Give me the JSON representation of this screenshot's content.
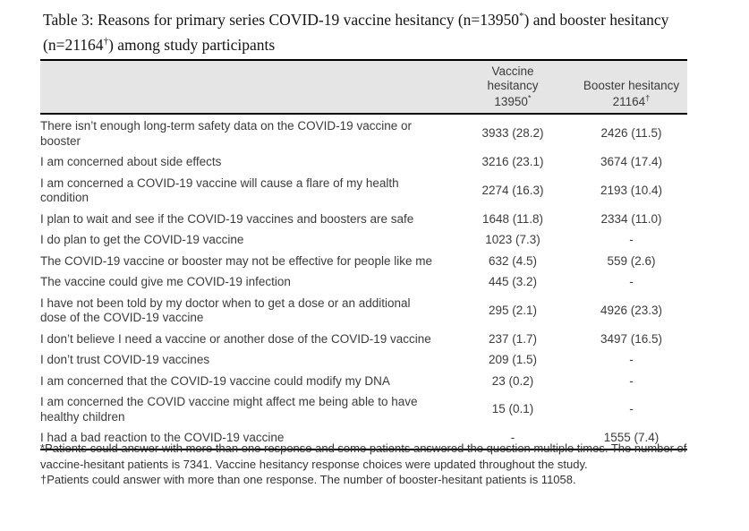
{
  "title": {
    "seg1": "Table 3: Reasons for primary series COVID-19 vaccine hesitancy (n=13950",
    "sup1": "*",
    "seg2": ") and booster hesitancy (n=21164",
    "sup2": "†",
    "seg3": ") among study participants"
  },
  "table": {
    "header": {
      "vaccine_label_line1": "Vaccine",
      "vaccine_label_line2": "hesitancy",
      "vaccine_n": "13950",
      "vaccine_sup": "*",
      "booster_label": "Booster hesitancy",
      "booster_n": "21164",
      "booster_sup": "†"
    },
    "rows": [
      {
        "reason": "There isn’t enough long-term safety data on the COVID-19 vaccine or booster",
        "vaccine": "3933 (28.2)",
        "booster": "2426 (11.5)"
      },
      {
        "reason": "I am concerned about side effects",
        "vaccine": "3216 (23.1)",
        "booster": "3674 (17.4)"
      },
      {
        "reason": "I am concerned a COVID-19 vaccine will cause a flare of my health condition",
        "vaccine": "2274 (16.3)",
        "booster": "2193 (10.4)"
      },
      {
        "reason": "I plan to wait and see if the COVID-19 vaccines and boosters are safe",
        "vaccine": "1648 (11.8)",
        "booster": "2334 (11.0)"
      },
      {
        "reason": "I do plan to get the COVID-19 vaccine",
        "vaccine": "1023 (7.3)",
        "booster": "-"
      },
      {
        "reason": "The COVID-19 vaccine or booster may not be effective for people like me",
        "vaccine": "632 (4.5)",
        "booster": "559 (2.6)"
      },
      {
        "reason": "The vaccine could give me COVID-19 infection",
        "vaccine": "445 (3.2)",
        "booster": "-"
      },
      {
        "reason": "I have not been told by my doctor when to get a dose or an additional dose of the COVID-19 vaccine",
        "vaccine": "295 (2.1)",
        "booster": "4926 (23.3)"
      },
      {
        "reason": "I don’t believe I need a vaccine or another dose of the COVID-19 vaccine",
        "vaccine": "237 (1.7)",
        "booster": "3497 (16.5)"
      },
      {
        "reason": "I don’t trust COVID-19 vaccines",
        "vaccine": "209 (1.5)",
        "booster": "-"
      },
      {
        "reason": "I am concerned that the COVID-19 vaccine could modify my DNA",
        "vaccine": "23 (0.2)",
        "booster": "-"
      },
      {
        "reason": "I am concerned the COVID vaccine might affect me being able to have healthy children",
        "vaccine": "15 (0.1)",
        "booster": "-"
      },
      {
        "reason": "I had a bad reaction to the COVID-19 vaccine",
        "vaccine": "-",
        "booster": "1555 (7.4)"
      }
    ]
  },
  "footnotes": {
    "star": "*Patients could answer with more than one response and some patients answered the question multiple times. The number of vaccine-hesitant patients is 7341. Vaccine hesitancy response choices were updated throughout the study.",
    "dagger": "†Patients could answer with more than one response. The number of booster-hesitant patients is 11058."
  },
  "colors": {
    "header_bg": "#e5e5e5",
    "border": "#000000",
    "body_text": "#3b3b3b",
    "title_text": "#141414"
  }
}
